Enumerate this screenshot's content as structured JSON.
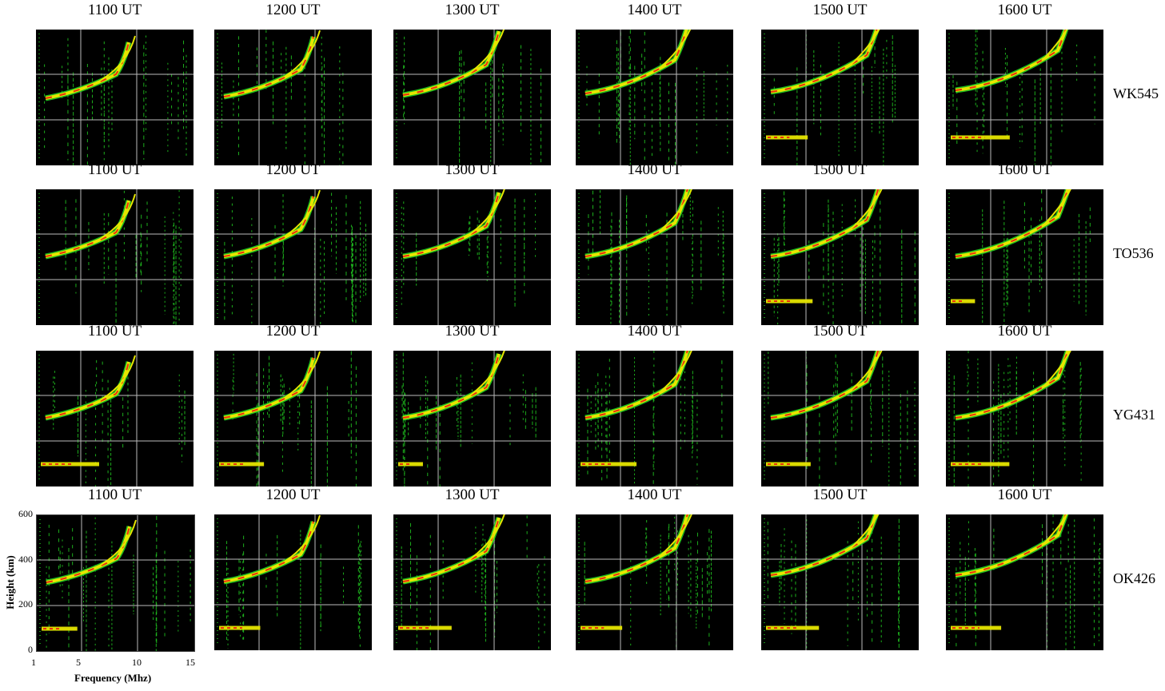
{
  "figure": {
    "times": [
      "1100 UT",
      "1200 UT",
      "1300 UT",
      "1400 UT",
      "1500 UT",
      "1600 UT"
    ],
    "stations": [
      "WK545",
      "TO536",
      "YG431",
      "OK426"
    ]
  },
  "chart_data": {
    "type": "heatmap",
    "description_type": "ionogram grid",
    "xlabel": "Frequency (Mhz)",
    "ylabel": "Height (km)",
    "xlim": [
      1,
      15
    ],
    "ylim": [
      0,
      600
    ],
    "x_ticks": [
      "1",
      "5",
      "10",
      "15"
    ],
    "y_ticks": [
      "0",
      "200",
      "400",
      "600"
    ],
    "grid": true,
    "colors": {
      "background": "#000000",
      "weak": "#22cc22",
      "medium": "#e6e600",
      "strong": "#e83010"
    }
  }
}
